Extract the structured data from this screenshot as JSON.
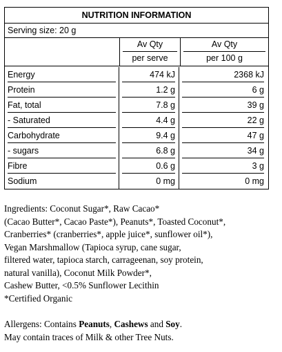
{
  "panel": {
    "title": "NUTRITION INFORMATION",
    "serving_size": "Serving size: 20 g",
    "columns": {
      "per_serve_line1": "Av Qty",
      "per_serve_line2": "per serve",
      "per_100g_line1": "Av Qty",
      "per_100g_line2": "per 100 g"
    },
    "rows": [
      {
        "label": "Energy",
        "per_serve": "474 kJ",
        "per_100g": "2368 kJ"
      },
      {
        "label": "Protein",
        "per_serve": "1.2 g",
        "per_100g": "6 g"
      },
      {
        "label": "Fat, total",
        "per_serve": "7.8 g",
        "per_100g": "39 g"
      },
      {
        "label": "- Saturated",
        "per_serve": "4.4 g",
        "per_100g": "22 g"
      },
      {
        "label": "Carbohydrate",
        "per_serve": "9.4 g",
        "per_100g": "47 g"
      },
      {
        "label": "- sugars",
        "per_serve": "6.8 g",
        "per_100g": "34 g"
      },
      {
        "label": "Fibre",
        "per_serve": "0.6 g",
        "per_100g": "3 g"
      },
      {
        "label": "Sodium",
        "per_serve": "0 mg",
        "per_100g": "0 mg"
      }
    ]
  },
  "ingredients": {
    "lines": [
      "Ingredients: Coconut Sugar*, Raw Cacao*",
      "(Cacao Butter*, Cacao Paste*), Peanuts*, Toasted Coconut*,",
      "Cranberries* (cranberries*, apple juice*, sunflower oil*),",
      "Vegan Marshmallow (Tapioca syrup, cane sugar,",
      "filtered water, tapioca starch, carrageenan, soy protein,",
      "natural vanilla), Coconut Milk Powder*,",
      "Cashew Butter, <0.5% Sunflower Lecithin",
      "*Certified Organic"
    ]
  },
  "allergens": {
    "prefix": "Allergens: Contains ",
    "item1": "Peanuts",
    "sep1": ", ",
    "item2": "Cashews",
    "sep2": " and ",
    "item3": "Soy",
    "suffix": ".",
    "line2": "May contain traces of Milk & other Tree Nuts."
  }
}
